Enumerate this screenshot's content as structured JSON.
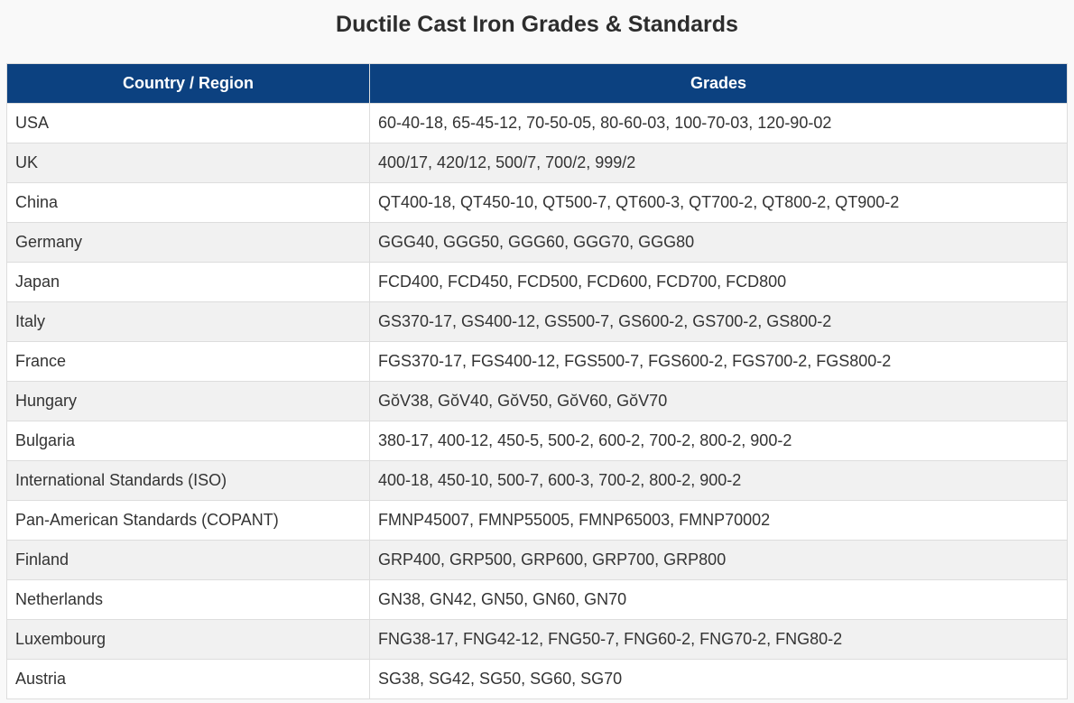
{
  "page": {
    "title": "Ductile Cast Iron Grades & Standards"
  },
  "table": {
    "columns": [
      "Country / Region",
      "Grades"
    ],
    "rows": [
      {
        "country": "USA",
        "grades": "60-40-18, 65-45-12, 70-50-05, 80-60-03, 100-70-03, 120-90-02"
      },
      {
        "country": "UK",
        "grades": "400/17, 420/12, 500/7, 700/2, 999/2"
      },
      {
        "country": "China",
        "grades": "QT400-18, QT450-10, QT500-7, QT600-3, QT700-2, QT800-2, QT900-2"
      },
      {
        "country": "Germany",
        "grades": "GGG40, GGG50, GGG60, GGG70, GGG80"
      },
      {
        "country": "Japan",
        "grades": "FCD400, FCD450, FCD500, FCD600, FCD700, FCD800"
      },
      {
        "country": "Italy",
        "grades": "GS370-17, GS400-12, GS500-7, GS600-2, GS700-2, GS800-2"
      },
      {
        "country": "France",
        "grades": "FGS370-17, FGS400-12, FGS500-7, FGS600-2, FGS700-2, FGS800-2"
      },
      {
        "country": "Hungary",
        "grades": "GŏV38, GŏV40, GŏV50, GŏV60, GŏV70"
      },
      {
        "country": "Bulgaria",
        "grades": "380-17, 400-12, 450-5, 500-2, 600-2, 700-2, 800-2, 900-2"
      },
      {
        "country": "International Standards (ISO)",
        "grades": "400-18, 450-10, 500-7, 600-3, 700-2, 800-2, 900-2"
      },
      {
        "country": "Pan-American Standards (COPANT)",
        "grades": "FMNP45007, FMNP55005, FMNP65003, FMNP70002"
      },
      {
        "country": "Finland",
        "grades": "GRP400, GRP500, GRP600, GRP700, GRP800"
      },
      {
        "country": "Netherlands",
        "grades": "GN38, GN42, GN50, GN60, GN70"
      },
      {
        "country": "Luxembourg",
        "grades": "FNG38-17, FNG42-12, FNG50-7, FNG60-2, FNG70-2, FNG80-2"
      },
      {
        "country": "Austria",
        "grades": "SG38, SG42, SG50, SG60, SG70"
      }
    ]
  },
  "colors": {
    "header_background": "#0c4180",
    "header_text": "#ffffff",
    "row_stripe": "#f1f1f1",
    "row_plain": "#ffffff",
    "cell_border": "#dddddd",
    "body_text": "#333333",
    "page_background": "#f9f9f9"
  }
}
